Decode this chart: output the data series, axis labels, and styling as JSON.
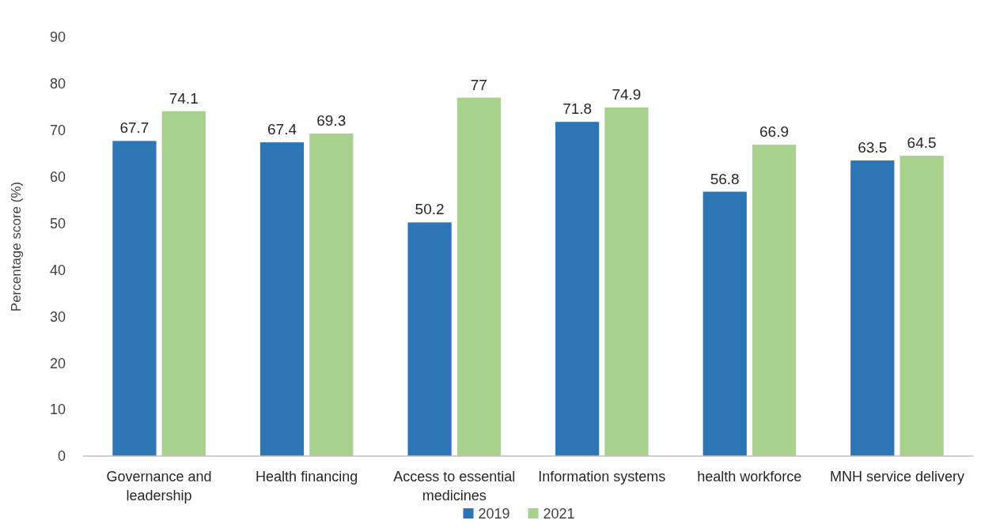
{
  "chart_data": {
    "type": "bar",
    "ylabel": "Percentage score (%)",
    "categories": [
      "Governance and leadership",
      "Health financing",
      "Access to essential medicines",
      "Information systems",
      "health workforce",
      "MNH service delivery"
    ],
    "series": [
      {
        "name": "2019",
        "color": "#2e75b6",
        "values": [
          67.7,
          67.4,
          50.2,
          71.8,
          56.8,
          63.5
        ]
      },
      {
        "name": "2021",
        "color": "#a9d18e",
        "values": [
          74.1,
          69.3,
          77,
          74.9,
          66.9,
          64.5
        ]
      }
    ],
    "ylim": [
      0,
      90
    ],
    "yticks": [
      0,
      10,
      20,
      30,
      40,
      50,
      60,
      70,
      80,
      90
    ],
    "grid": false,
    "legend": "bottom",
    "data_labels": true
  }
}
